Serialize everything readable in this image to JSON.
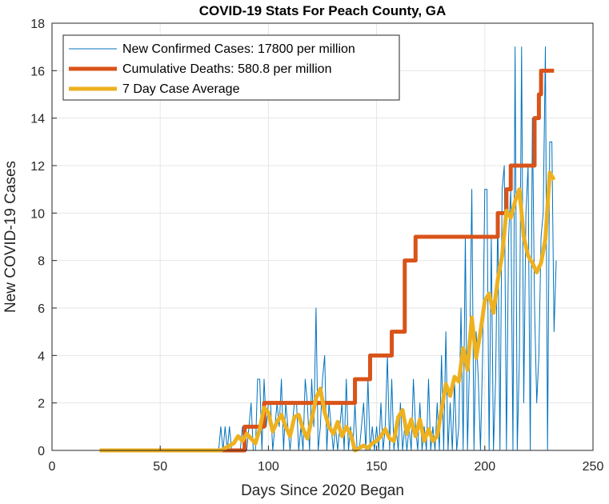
{
  "chart_data": {
    "type": "line",
    "title": "COVID-19 Stats For Peach County, GA",
    "xlabel": "Days Since 2020 Began",
    "ylabel": "New COVID-19 Cases",
    "xlim": [
      0,
      250
    ],
    "ylim": [
      0,
      18
    ],
    "xticks": [
      "0",
      "50",
      "100",
      "150",
      "200",
      "250"
    ],
    "yticks": [
      "0",
      "2",
      "4",
      "6",
      "8",
      "10",
      "12",
      "14",
      "16",
      "18"
    ],
    "grid": true,
    "legend_position": "top-left",
    "series": [
      {
        "name": "New Confirmed Cases: 17800 per million",
        "color": "#0072BD",
        "style": "thin",
        "x": [
          22,
          30,
          40,
          50,
          60,
          70,
          76,
          77,
          78,
          79,
          80,
          81,
          82,
          83,
          84,
          85,
          86,
          87,
          88,
          89,
          90,
          91,
          92,
          93,
          94,
          95,
          96,
          97,
          98,
          99,
          100,
          101,
          102,
          103,
          104,
          105,
          106,
          107,
          108,
          109,
          110,
          111,
          112,
          113,
          114,
          115,
          116,
          117,
          118,
          119,
          120,
          121,
          122,
          123,
          124,
          125,
          126,
          127,
          128,
          129,
          130,
          131,
          132,
          133,
          134,
          135,
          136,
          137,
          138,
          139,
          140,
          141,
          142,
          143,
          144,
          145,
          146,
          147,
          148,
          149,
          150,
          151,
          152,
          153,
          154,
          155,
          156,
          157,
          158,
          159,
          160,
          161,
          162,
          163,
          164,
          165,
          166,
          167,
          168,
          169,
          170,
          171,
          172,
          173,
          174,
          175,
          176,
          177,
          178,
          179,
          180,
          181,
          182,
          183,
          184,
          185,
          186,
          187,
          188,
          189,
          190,
          191,
          192,
          193,
          194,
          195,
          196,
          197,
          198,
          199,
          200,
          201,
          202,
          203,
          204,
          205,
          206,
          207,
          208,
          209,
          210,
          211,
          212,
          213,
          214,
          215,
          216,
          217,
          218,
          219,
          220,
          221,
          222,
          223,
          224,
          225,
          226,
          227,
          228,
          229,
          230,
          231,
          232,
          233
        ],
        "y": [
          0,
          0,
          0,
          0,
          0,
          0,
          0,
          0,
          1,
          0,
          1,
          0,
          1,
          0,
          0,
          0,
          0,
          0,
          1,
          0,
          0,
          1,
          2,
          0,
          0,
          3,
          3,
          0,
          3,
          1,
          2,
          2,
          0,
          1,
          2,
          1,
          3,
          0,
          2,
          1,
          0,
          1,
          2,
          2,
          0,
          1,
          0,
          3,
          2,
          0,
          3,
          1,
          6,
          0,
          1,
          3,
          4,
          0,
          2,
          1,
          0,
          1,
          0,
          1,
          2,
          0,
          3,
          0,
          1,
          0,
          2,
          0,
          0,
          1,
          2,
          0,
          3,
          0,
          1,
          0,
          1,
          0,
          2,
          0,
          1,
          4,
          0,
          3,
          0,
          1,
          0,
          2,
          0,
          1,
          0,
          1,
          0,
          3,
          1,
          0,
          2,
          0,
          1,
          0,
          3,
          0,
          1,
          0,
          2,
          0,
          4,
          0,
          5,
          0,
          2,
          0,
          3,
          0,
          1,
          6,
          0,
          9,
          0,
          4,
          11,
          0,
          5,
          3,
          0,
          4,
          11,
          11,
          0,
          9,
          0,
          3,
          10,
          0,
          11,
          12,
          0,
          9,
          11,
          0,
          17,
          0,
          4,
          17,
          2,
          10,
          12,
          0,
          14,
          6,
          2,
          4,
          9,
          10,
          17,
          0,
          13,
          13,
          5,
          8
        ]
      },
      {
        "name": "Cumulative Deaths: 580.8 per million",
        "color": "#D95319",
        "style": "thick-step",
        "x": [
          22,
          84,
          89,
          97,
          98,
          104,
          105,
          120,
          121,
          138,
          140,
          141,
          146,
          147,
          154,
          155,
          157,
          158,
          163,
          164,
          168,
          169,
          185,
          186,
          205,
          206,
          208,
          210,
          212,
          215,
          221,
          223,
          225,
          226,
          227,
          232
        ],
        "y": [
          0,
          0,
          1,
          1,
          2,
          2,
          2,
          2,
          2,
          2,
          3,
          3,
          3,
          4,
          4,
          4,
          5,
          5,
          8,
          8,
          9,
          9,
          9,
          9,
          9,
          10,
          10,
          11,
          12,
          12,
          12,
          14,
          15,
          16,
          16,
          16
        ]
      },
      {
        "name": "7 Day Case Average",
        "color": "#EDB120",
        "style": "thick",
        "x": [
          22,
          40,
          60,
          78,
          80,
          84,
          86,
          88,
          90,
          92,
          94,
          96,
          98,
          100,
          102,
          104,
          106,
          108,
          110,
          112,
          114,
          116,
          118,
          120,
          122,
          124,
          126,
          128,
          130,
          132,
          134,
          136,
          138,
          140,
          142,
          144,
          146,
          148,
          150,
          152,
          154,
          156,
          158,
          160,
          162,
          164,
          166,
          168,
          170,
          172,
          174,
          176,
          178,
          180,
          182,
          184,
          186,
          188,
          190,
          192,
          194,
          196,
          198,
          200,
          202,
          204,
          206,
          208,
          210,
          212,
          214,
          216,
          218,
          220,
          222,
          224,
          226,
          228,
          230,
          232
        ],
        "y": [
          0,
          0,
          0,
          0,
          0.1,
          0.3,
          0.6,
          0.4,
          0.7,
          0.5,
          0.3,
          0.9,
          1.8,
          1.6,
          0.8,
          1.2,
          1.5,
          1.0,
          0.6,
          1.4,
          1.5,
          0.9,
          0.5,
          1.3,
          2.2,
          2.6,
          1.6,
          1.0,
          0.7,
          1.2,
          0.6,
          1.0,
          0.7,
          0.0,
          0.1,
          0.2,
          0.1,
          0.3,
          0.4,
          0.6,
          0.9,
          0.5,
          0.4,
          1.4,
          1.7,
          0.7,
          1.3,
          0.6,
          1.3,
          0.4,
          0.9,
          0.4,
          0.6,
          1.7,
          2.8,
          2.3,
          3.1,
          2.9,
          4.3,
          3.4,
          5.6,
          3.9,
          5.0,
          6.3,
          6.6,
          5.8,
          7.2,
          8.2,
          10.1,
          9.8,
          10.5,
          11.0,
          9.0,
          8.2,
          7.9,
          7.5,
          7.9,
          8.9,
          11.7,
          11.4
        ]
      }
    ]
  }
}
